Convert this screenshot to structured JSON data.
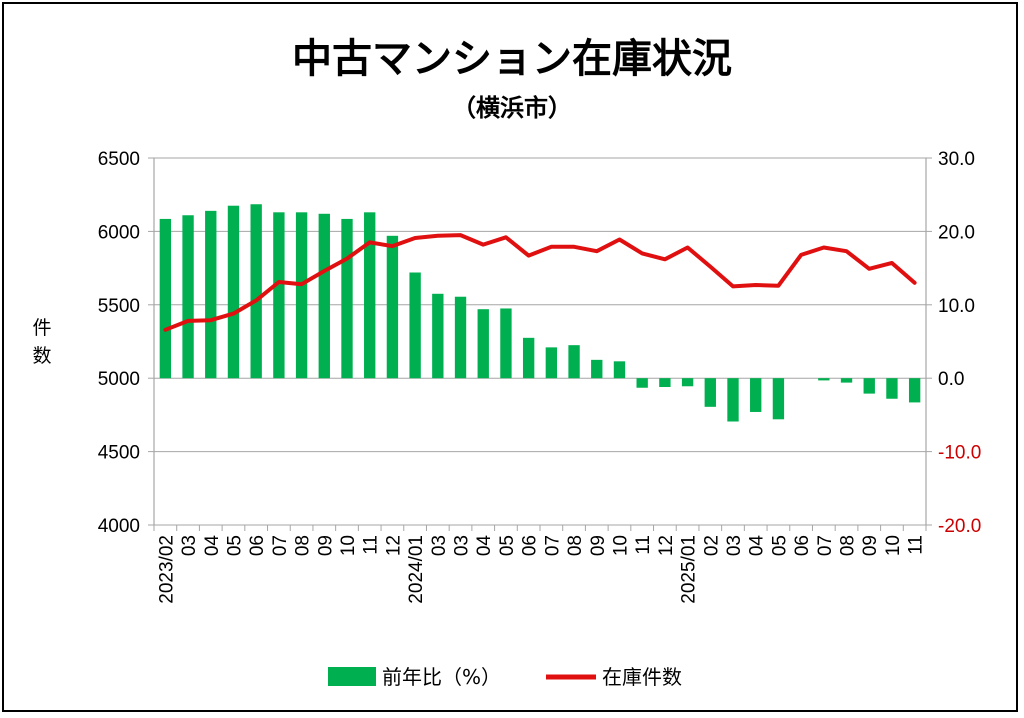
{
  "chart_data": {
    "type": "bar+line",
    "title": "中古マンション在庫状況",
    "subtitle": "（横浜市）",
    "ylabel_left": "件数",
    "left_axis": {
      "min": 4000,
      "max": 6500,
      "ticks": [
        "4000",
        "4500",
        "5000",
        "5500",
        "6000",
        "6500"
      ]
    },
    "right_axis": {
      "min": -20,
      "max": 30,
      "ticks": [
        "-20.0",
        "-10.0",
        "0.0",
        "10.0",
        "20.0",
        "30.0"
      ],
      "negative_color": "#cc0000",
      "positive_color": "#000000"
    },
    "categories": [
      "2023/02",
      "03",
      "04",
      "05",
      "06",
      "07",
      "08",
      "09",
      "10",
      "11",
      "12",
      "2024/01",
      "03",
      "03",
      "04",
      "05",
      "06",
      "07",
      "08",
      "09",
      "10",
      "11",
      "12",
      "2025/01",
      "02",
      "03",
      "04",
      "05",
      "06",
      "07",
      "08",
      "09",
      "10",
      "11"
    ],
    "series": [
      {
        "name": "前年比（%）",
        "type": "bar",
        "axis": "right",
        "color": "#00b050",
        "values": [
          21.7,
          22.2,
          22.8,
          23.5,
          23.7,
          22.6,
          22.6,
          22.4,
          21.7,
          22.6,
          19.4,
          14.4,
          11.5,
          11.1,
          9.4,
          9.5,
          5.5,
          4.2,
          4.5,
          2.5,
          2.3,
          -1.3,
          -1.2,
          -1.1,
          -3.9,
          -5.9,
          -4.6,
          -5.6,
          0.0,
          -0.3,
          -0.6,
          -2.1,
          -2.8,
          -3.3
        ]
      },
      {
        "name": "在庫件数",
        "type": "line",
        "axis": "left",
        "color": "#e01010",
        "values": [
          5330,
          5390,
          5395,
          5440,
          5530,
          5655,
          5640,
          5730,
          5815,
          5925,
          5900,
          5955,
          5970,
          5975,
          5910,
          5960,
          5835,
          5895,
          5895,
          5865,
          5945,
          5850,
          5810,
          5890,
          5760,
          5625,
          5635,
          5630,
          5840,
          5890,
          5865,
          5745,
          5785,
          5650
        ]
      }
    ],
    "legend": {
      "position": "bottom",
      "items": [
        "前年比（%）",
        "在庫件数"
      ]
    }
  }
}
